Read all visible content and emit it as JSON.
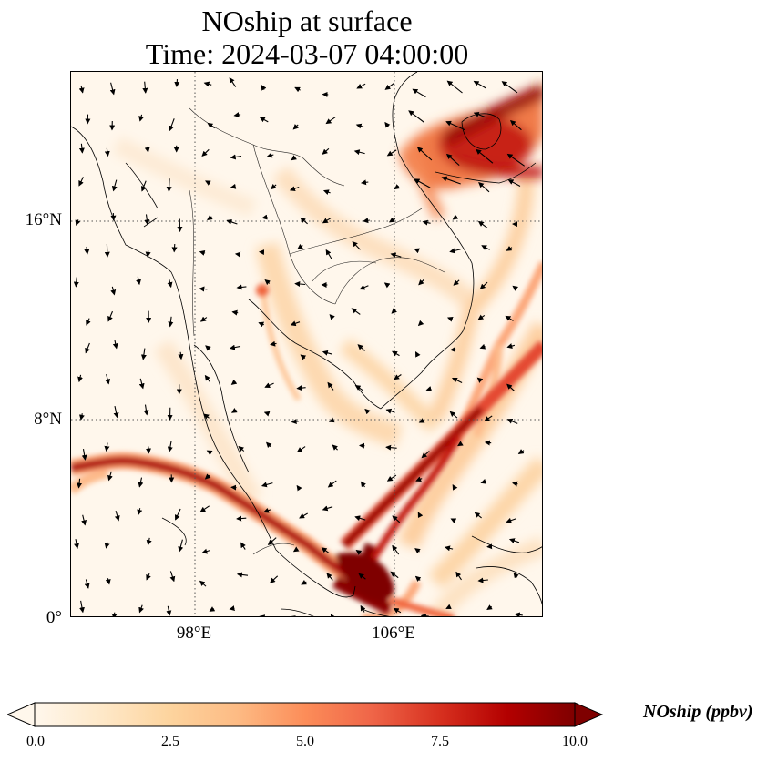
{
  "title_line1": "NOship at surface",
  "title_line2": "Time: 2024-03-07 04:00:00",
  "map": {
    "lon_range": [
      92,
      111
    ],
    "lat_range": [
      0,
      22
    ],
    "lat_ticks": [
      {
        "value": 16,
        "label": "16°N"
      },
      {
        "value": 8,
        "label": "8°N"
      },
      {
        "value": 0,
        "label": "0°"
      }
    ],
    "lon_ticks": [
      {
        "value": 98,
        "label": "98°E"
      },
      {
        "value": 106,
        "label": "106°E"
      }
    ],
    "gridlines": "dotted"
  },
  "colorbar": {
    "title": "NOship (ppbv)",
    "colormap": "OrRd",
    "range": [
      0,
      10
    ],
    "ticks": [
      "0.0",
      "2.5",
      "5.0",
      "7.5",
      "10.0"
    ],
    "extend": "both"
  },
  "colors": {
    "low": "#fff7ec",
    "mid": "#fc8d59",
    "high": "#7f0000"
  }
}
